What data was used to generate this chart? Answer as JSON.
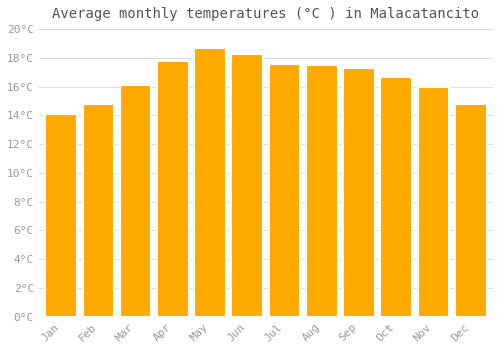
{
  "months": [
    "Jan",
    "Feb",
    "Mar",
    "Apr",
    "May",
    "Jun",
    "Jul",
    "Aug",
    "Sep",
    "Oct",
    "Nov",
    "Dec"
  ],
  "values": [
    14.1,
    14.8,
    16.1,
    17.8,
    18.7,
    18.3,
    17.6,
    17.5,
    17.3,
    16.7,
    16.0,
    14.8
  ],
  "bar_color_top": "#FFAA00",
  "bar_color_bottom": "#FFB733",
  "bar_edge_color": "#FFFFFF",
  "title": "Average monthly temperatures (°C ) in Malacatancito",
  "ylim": [
    0,
    20
  ],
  "ytick_step": 2,
  "background_color": "#FFFFFF",
  "plot_bg_color": "#FFFFFF",
  "grid_color": "#DDDDDD",
  "title_fontsize": 10,
  "tick_fontsize": 8,
  "font_family": "monospace"
}
